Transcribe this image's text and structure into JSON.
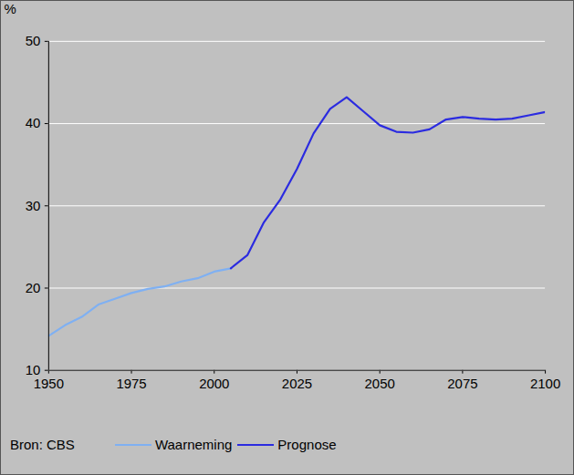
{
  "chart_data": {
    "type": "line",
    "y_label": "%",
    "source": "Bron: CBS",
    "x": [
      1950,
      1955,
      1960,
      1965,
      1970,
      1975,
      1980,
      1985,
      1990,
      1995,
      2000,
      2005,
      2010,
      2015,
      2020,
      2025,
      2030,
      2035,
      2040,
      2045,
      2050,
      2055,
      2060,
      2065,
      2070,
      2075,
      2080,
      2085,
      2090,
      2095,
      2100
    ],
    "series": [
      {
        "name": "Waarneming",
        "color": "#7fb0f2",
        "values": [
          14.2,
          15.5,
          16.5,
          18.0,
          18.7,
          19.4,
          19.9,
          20.2,
          20.8,
          21.2,
          22.0,
          22.4,
          null,
          null,
          null,
          null,
          null,
          null,
          null,
          null,
          null,
          null,
          null,
          null,
          null,
          null,
          null,
          null,
          null,
          null,
          null
        ]
      },
      {
        "name": "Prognose",
        "color": "#2b2be0",
        "values": [
          null,
          null,
          null,
          null,
          null,
          null,
          null,
          null,
          null,
          null,
          null,
          22.4,
          24.0,
          28.0,
          30.8,
          34.5,
          38.8,
          41.8,
          43.2,
          41.5,
          39.8,
          39.0,
          38.9,
          39.3,
          40.5,
          40.8,
          40.6,
          40.5,
          40.6,
          41.0,
          41.4
        ]
      }
    ],
    "xlim": [
      1950,
      2100
    ],
    "xticks": [
      1950,
      1975,
      2000,
      2025,
      2050,
      2075,
      2100
    ],
    "ylim": [
      10,
      50
    ],
    "yticks": [
      10,
      20,
      30,
      40,
      50
    ],
    "grid": true,
    "legend": "bottom"
  }
}
